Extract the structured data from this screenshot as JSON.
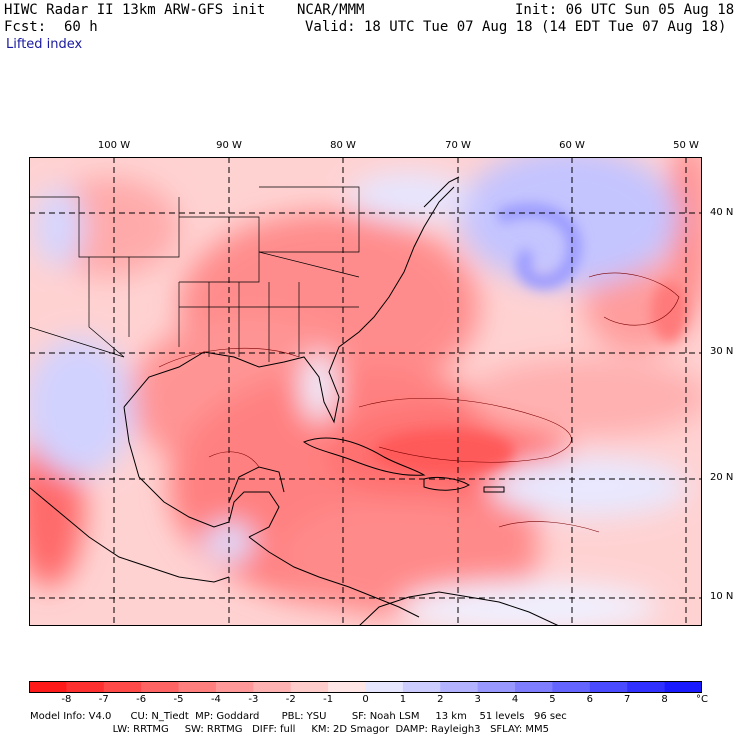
{
  "header": {
    "title": "HIWC Radar II 13km ARW-GFS init",
    "org": "NCAR/MMM",
    "init": "Init: 06 UTC Sun 05 Aug 18",
    "fcst_label": "Fcst:",
    "fcst_value": "60 h",
    "valid": "Valid: 18 UTC Tue 07 Aug 18 (14 EDT Tue 07 Aug 18)",
    "field": "Lifted index"
  },
  "map": {
    "lon_labels": [
      "100 W",
      "90 W",
      "80 W",
      "70 W",
      "60 W",
      "50 W"
    ],
    "lat_labels": [
      "40 N",
      "30 N",
      "20 N",
      "10 N"
    ]
  },
  "colorbar": {
    "ticks": [
      "-8",
      "-7",
      "-6",
      "-5",
      "-4",
      "-3",
      "-2",
      "-1",
      "0",
      "1",
      "2",
      "3",
      "4",
      "5",
      "6",
      "7",
      "8"
    ],
    "unit": "°C",
    "colors": [
      "#ff1a1a",
      "#ff3030",
      "#ff4a4a",
      "#ff6464",
      "#ff7e7e",
      "#ff9898",
      "#ffb2b2",
      "#ffcccc",
      "#ffe6e6",
      "#e6e6ff",
      "#ccccff",
      "#b2b2ff",
      "#9898ff",
      "#7e7eff",
      "#6464ff",
      "#4a4aff",
      "#3030ff",
      "#1a1aff"
    ]
  },
  "footer": {
    "line1": "Model Info: V4.0      CU: N_Tiedt  MP: Goddard       PBL: YSU        SF: Noah LSM     13 km    51 levels   96 sec",
    "line2": "                          LW: RRTMG     SW: RRTMG   DIFF: full     KM: 2D Smagor  DAMP: Rayleigh3   SFLAY: MM5"
  }
}
